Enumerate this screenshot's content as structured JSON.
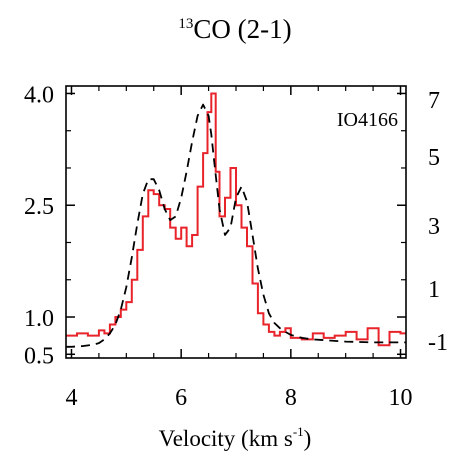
{
  "chart_data": {
    "type": "line",
    "title": {
      "sup": "13",
      "main": "CO (2-1)"
    },
    "annotation": "IO4166",
    "xlabel": {
      "main": "Velocity (km s",
      "sup": "-1",
      "close": ")"
    },
    "ylabel": "",
    "xlim": [
      3.9,
      10.1
    ],
    "ylim": [
      0.45,
      4.1
    ],
    "xticks": [
      "4",
      "6",
      "8",
      "10"
    ],
    "yticks": [
      "0.5",
      "1.0",
      "2.5",
      "4.0"
    ],
    "grid": false,
    "colors": {
      "observed": "#e8232a",
      "model": "#000000"
    },
    "series": [
      {
        "style": "step",
        "color": "#e8232a",
        "x": [
          3.9,
          4.1,
          4.3,
          4.5,
          4.6,
          4.7,
          4.8,
          4.9,
          5.0,
          5.1,
          5.2,
          5.3,
          5.4,
          5.5,
          5.6,
          5.7,
          5.8,
          5.9,
          6.0,
          6.1,
          6.2,
          6.3,
          6.4,
          6.48,
          6.55,
          6.63,
          6.7,
          6.8,
          6.9,
          7.0,
          7.1,
          7.2,
          7.3,
          7.4,
          7.5,
          7.6,
          7.7,
          7.8,
          7.9,
          8.0,
          8.2,
          8.4,
          8.6,
          8.8,
          9.0,
          9.2,
          9.4,
          9.6,
          9.8,
          10.0
        ],
        "y": [
          0.75,
          0.78,
          0.75,
          0.82,
          0.78,
          0.9,
          1.0,
          1.1,
          1.2,
          1.5,
          1.9,
          2.35,
          2.7,
          2.65,
          2.5,
          2.45,
          2.2,
          2.05,
          2.2,
          1.95,
          2.1,
          2.75,
          3.2,
          3.75,
          4.0,
          2.95,
          2.35,
          2.6,
          3.0,
          2.5,
          2.2,
          1.95,
          1.45,
          1.05,
          0.9,
          0.8,
          0.75,
          0.8,
          0.85,
          0.72,
          0.7,
          0.78,
          0.72,
          0.75,
          0.8,
          0.7,
          0.85,
          0.62,
          0.8,
          0.78
        ]
      },
      {
        "style": "dashed",
        "color": "#000000",
        "x": [
          3.9,
          4.0,
          4.2,
          4.4,
          4.5,
          4.6,
          4.7,
          4.8,
          4.9,
          5.0,
          5.1,
          5.2,
          5.3,
          5.4,
          5.5,
          5.6,
          5.7,
          5.8,
          5.9,
          6.0,
          6.1,
          6.2,
          6.3,
          6.4,
          6.5,
          6.55,
          6.6,
          6.7,
          6.8,
          6.9,
          7.0,
          7.1,
          7.2,
          7.3,
          7.4,
          7.5,
          7.6,
          7.7,
          7.8,
          7.9,
          8.0,
          8.2,
          8.4,
          8.6,
          8.8,
          9.0,
          9.5,
          10.0,
          10.1
        ],
        "y": [
          0.6,
          0.6,
          0.61,
          0.63,
          0.65,
          0.7,
          0.78,
          0.9,
          1.1,
          1.4,
          1.8,
          2.25,
          2.65,
          2.85,
          2.85,
          2.7,
          2.45,
          2.3,
          2.35,
          2.6,
          2.95,
          3.35,
          3.7,
          3.85,
          3.7,
          3.45,
          3.1,
          2.45,
          2.1,
          2.2,
          2.6,
          2.75,
          2.55,
          2.1,
          1.65,
          1.3,
          1.05,
          0.92,
          0.85,
          0.8,
          0.76,
          0.72,
          0.7,
          0.69,
          0.68,
          0.67,
          0.66,
          0.66,
          0.66
        ]
      }
    ],
    "neighbor_panel_ticks": [
      "7",
      "5",
      "3",
      "1",
      "-1"
    ]
  }
}
